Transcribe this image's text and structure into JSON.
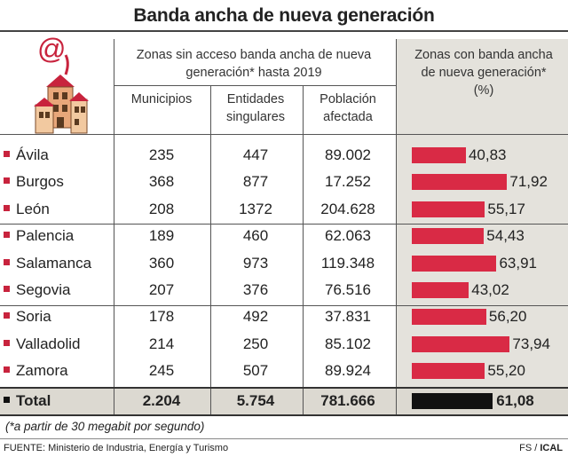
{
  "title": "Banda ancha de nueva generación",
  "header": {
    "group_no_access": "Zonas sin acceso banda ancha de nueva generación* hasta 2019",
    "col_municipios": "Municipios",
    "col_entidades": "Entidades singulares",
    "col_poblacion": "Población afectada",
    "col_con_banda": "Zonas con banda ancha de nueva generación* (%)"
  },
  "chart_data": {
    "type": "table",
    "columns": [
      "Municipios",
      "Entidades singulares",
      "Población afectada",
      "Zonas con banda ancha de nueva generación* (%)"
    ],
    "rows": [
      {
        "province": "Ávila",
        "municipios": "235",
        "entidades": "447",
        "poblacion": "89.002",
        "pct": 40.83,
        "pct_label": "40,83"
      },
      {
        "province": "Burgos",
        "municipios": "368",
        "entidades": "877",
        "poblacion": "17.252",
        "pct": 71.92,
        "pct_label": "71,92"
      },
      {
        "province": "León",
        "municipios": "208",
        "entidades": "1372",
        "poblacion": "204.628",
        "pct": 55.17,
        "pct_label": "55,17"
      },
      {
        "province": "Palencia",
        "municipios": "189",
        "entidades": "460",
        "poblacion": "62.063",
        "pct": 54.43,
        "pct_label": "54,43"
      },
      {
        "province": "Salamanca",
        "municipios": "360",
        "entidades": "973",
        "poblacion": "119.348",
        "pct": 63.91,
        "pct_label": "63,91"
      },
      {
        "province": "Segovia",
        "municipios": "207",
        "entidades": "376",
        "poblacion": "76.516",
        "pct": 43.02,
        "pct_label": "43,02"
      },
      {
        "province": "Soria",
        "municipios": "178",
        "entidades": "492",
        "poblacion": "37.831",
        "pct": 56.2,
        "pct_label": "56,20"
      },
      {
        "province": "Valladolid",
        "municipios": "214",
        "entidades": "250",
        "poblacion": "85.102",
        "pct": 73.94,
        "pct_label": "73,94"
      },
      {
        "province": "Zamora",
        "municipios": "245",
        "entidades": "507",
        "poblacion": "89.924",
        "pct": 55.2,
        "pct_label": "55,20"
      }
    ],
    "total": {
      "province": "Total",
      "municipios": "2.204",
      "entidades": "5.754",
      "poblacion": "781.666",
      "pct": 61.08,
      "pct_label": "61,08"
    },
    "bar_color": "#d92a45",
    "total_bar_color": "#111111"
  },
  "note": "(*a partir de 30 megabit por segundo)",
  "source": "FUENTE: Ministerio de Industria, Energía y Turismo",
  "credit_prefix": "FS / ",
  "credit_agency": "ICAL"
}
